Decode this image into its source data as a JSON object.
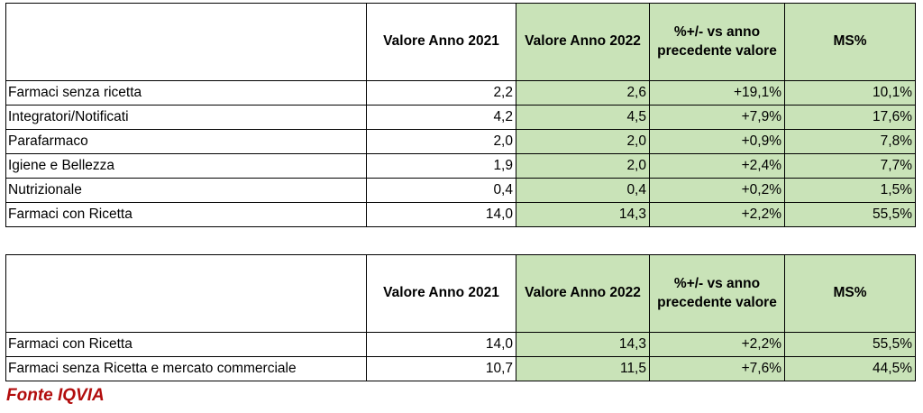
{
  "headers": {
    "col1": "",
    "col2": "Valore Anno 2021",
    "col3": "Valore Anno 2022",
    "col4": "%+/- vs anno precedente valore",
    "col5": "MS%"
  },
  "table1": {
    "rows": [
      {
        "label": "Farmaci senza ricetta",
        "v2021": "2,2",
        "v2022": "2,6",
        "delta": "+19,1%",
        "ms": "10,1%"
      },
      {
        "label": "Integratori/Notificati",
        "v2021": "4,2",
        "v2022": "4,5",
        "delta": "+7,9%",
        "ms": "17,6%"
      },
      {
        "label": "Parafarmaco",
        "v2021": "2,0",
        "v2022": "2,0",
        "delta": "+0,9%",
        "ms": "7,8%"
      },
      {
        "label": "Igiene e Bellezza",
        "v2021": "1,9",
        "v2022": "2,0",
        "delta": "+2,4%",
        "ms": "7,7%"
      },
      {
        "label": "Nutrizionale",
        "v2021": "0,4",
        "v2022": "0,4",
        "delta": "+0,2%",
        "ms": "1,5%"
      },
      {
        "label": "Farmaci con Ricetta",
        "v2021": "14,0",
        "v2022": "14,3",
        "delta": "+2,2%",
        "ms": "55,5%"
      }
    ]
  },
  "table2": {
    "rows": [
      {
        "label": "Farmaci con Ricetta",
        "v2021": "14,0",
        "v2022": "14,3",
        "delta": "+2,2%",
        "ms": "55,5%"
      },
      {
        "label": "Farmaci senza Ricetta e mercato commerciale",
        "v2021": "10,7",
        "v2022": "11,5",
        "delta": "+7,6%",
        "ms": "44,5%"
      }
    ]
  },
  "source": "Fonte IQVIA",
  "colors": {
    "highlight_fill": "#c9e3b8",
    "source_text": "#b20d0d",
    "border": "#000000"
  }
}
